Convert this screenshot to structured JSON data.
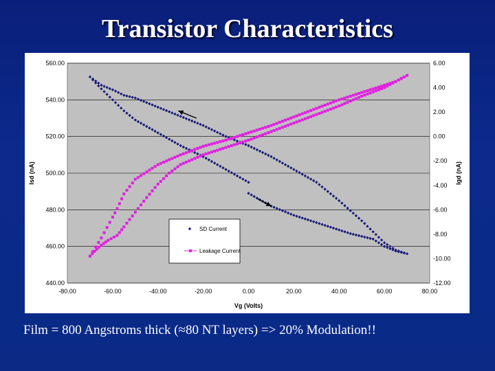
{
  "slide": {
    "title": "Transistor Characteristics",
    "caption": "Film = 800 Angstroms thick (≈80 NT layers) => 20% Modulation!!"
  },
  "chart_data": {
    "type": "scatter",
    "xlabel": "Vg (Volts)",
    "ylabel": "Isd (nA)",
    "y2label": "Igd (nA)",
    "xlim": [
      -80,
      80
    ],
    "ylim": [
      440,
      560
    ],
    "y2lim": [
      -12,
      6
    ],
    "xticks": [
      "-80.00",
      "-60.00",
      "-40.00",
      "-20.00",
      "0.00",
      "20.00",
      "40.00",
      "60.00",
      "80.00"
    ],
    "yticks": [
      "440.00",
      "460.00",
      "480.00",
      "500.00",
      "520.00",
      "540.00",
      "560.00"
    ],
    "y2ticks": [
      "-12.00",
      "-10.00",
      "-8.00",
      "-6.00",
      "-4.00",
      "-2.00",
      "0.00",
      "2.00",
      "4.00",
      "6.00"
    ],
    "grid": true,
    "plot_background": "#c0c0c0",
    "legend_position": "bottom-center",
    "series": [
      {
        "name": "SD Current",
        "axis": "left",
        "color": "#1a1a7a",
        "marker": "diamond",
        "x": [
          0,
          5,
          10,
          15,
          20,
          25,
          30,
          35,
          40,
          45,
          50,
          55,
          60,
          65,
          70,
          65,
          60,
          50,
          40,
          30,
          20,
          10,
          0,
          -10,
          -20,
          -30,
          -40,
          -50,
          -55,
          -60,
          -65,
          -70,
          -65,
          -60,
          -55,
          -50,
          -40,
          -30,
          -20,
          -10,
          0
        ],
        "y": [
          489,
          485.5,
          482,
          479.5,
          477,
          475,
          473,
          471,
          469,
          467,
          465.5,
          464,
          460,
          457.5,
          456,
          458,
          462,
          474,
          485,
          495,
          502,
          509,
          515,
          520,
          526,
          531,
          536,
          541,
          542.5,
          545.5,
          548,
          552.5,
          546,
          540,
          534,
          529,
          522,
          515,
          509,
          502,
          495
        ]
      },
      {
        "name": "Leakage Current",
        "axis": "right",
        "color": "#e020e0",
        "marker": "square",
        "x": [
          -70,
          -68,
          -65,
          -62,
          -58,
          -55,
          -50,
          -45,
          -40,
          -35,
          -30,
          -25,
          -20,
          -10,
          0,
          10,
          20,
          30,
          40,
          50,
          60,
          65,
          70,
          65,
          60,
          50,
          40,
          30,
          20,
          10,
          0,
          -10,
          -20,
          -30,
          -40,
          -50,
          -55,
          -58,
          -60,
          -65,
          -70
        ],
        "y": [
          -9.8,
          -9.4,
          -8.9,
          -8.5,
          -8.1,
          -7.4,
          -6.2,
          -5.0,
          -3.9,
          -3.0,
          -2.3,
          -1.9,
          -1.5,
          -0.9,
          -0.3,
          0.4,
          1.1,
          1.8,
          2.5,
          3.3,
          4.0,
          4.5,
          5.0,
          4.5,
          4.2,
          3.6,
          3.0,
          2.3,
          1.6,
          0.9,
          0.3,
          -0.3,
          -0.8,
          -1.5,
          -2.3,
          -3.5,
          -4.7,
          -5.9,
          -6.6,
          -8.3,
          -9.8
        ]
      }
    ]
  }
}
